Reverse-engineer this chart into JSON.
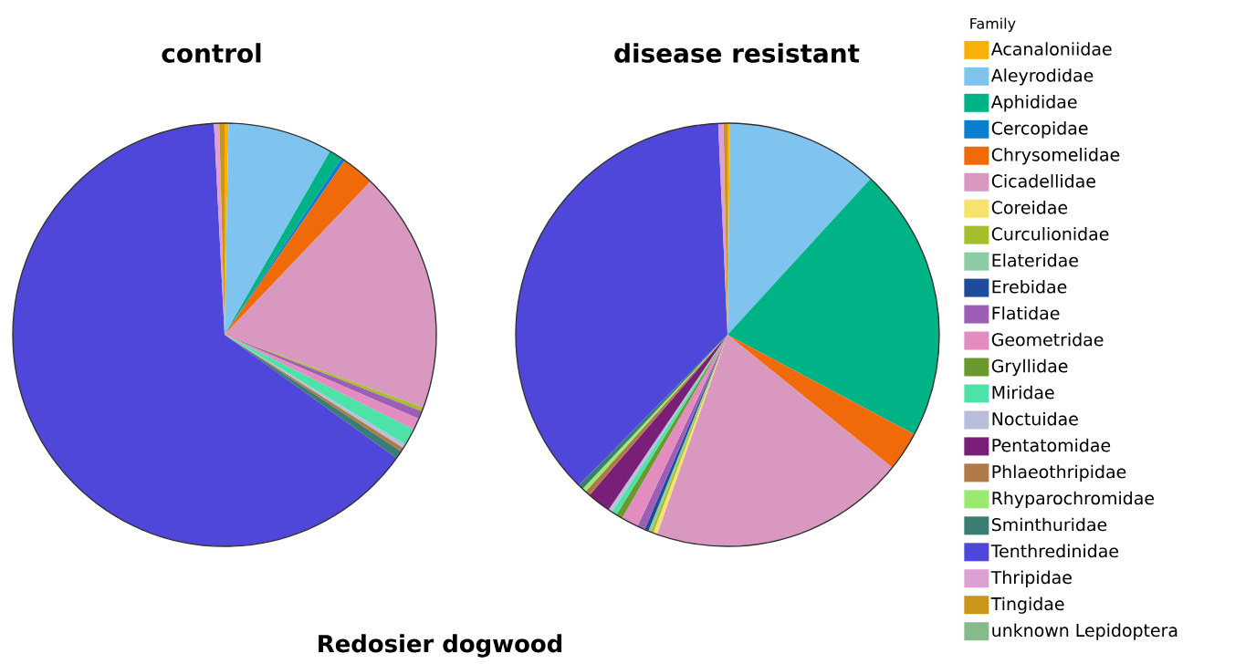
{
  "chart_data": [
    {
      "type": "pie",
      "title": "control",
      "legend": false,
      "annotations": [
        "Redosier dogwood"
      ],
      "categories": [
        null,
        null,
        null,
        null,
        null,
        null,
        null,
        null,
        null,
        null,
        null,
        null,
        null,
        null,
        null,
        null,
        null,
        null,
        null,
        null,
        null,
        null,
        null
      ],
      "values": [
        0.3,
        8.0,
        1.0,
        0.3,
        2.5,
        18.5,
        0,
        0.3,
        0,
        0,
        0.6,
        0.9,
        0,
        1.3,
        0.3,
        0,
        0.3,
        0,
        0.6,
        64.3,
        0.4,
        0.4,
        0
      ],
      "colors": [
        "#f9b10a",
        "#7fc4ee",
        "#00b386",
        "#0a7fd1",
        "#f06a0a",
        "#d898c0",
        "#f7e26b",
        "#a3bf2c",
        "#8ccba3",
        "#1e4c9c",
        "#9c5fb5",
        "#e28cc0",
        "#6a9a2e",
        "#4de3a8",
        "#b9bedc",
        "#7a1f78",
        "#b07a48",
        "#9bea70",
        "#3a7e73",
        "#4f47d9",
        "#dda0d2",
        "#c9961a",
        "#86ba8a"
      ]
    },
    {
      "type": "pie",
      "title": "disease resistant",
      "legend": "right",
      "legend_title": "Family",
      "categories": [
        "Acanaloniidae",
        "Aleyrodidae",
        "Aphididae",
        "Cercopidae",
        "Chrysomelidae",
        "Cicadellidae",
        "Coreidae",
        "Curculionidae",
        "Elateridae",
        "Erebidae",
        "Flatidae",
        "Geometridae",
        "Gryllidae",
        "Miridae",
        "Noctuidae",
        "Pentatomidae",
        "Phlaeothripidae",
        "Rhyparochromidae",
        "Sminthuridae",
        "Tenthredinidae",
        "Thripidae",
        "Tingidae",
        "unknown Lepidoptera"
      ],
      "values": [
        0.2,
        11.6,
        21.0,
        0,
        3.0,
        19.6,
        0.3,
        0.2,
        0.2,
        0.3,
        0.6,
        1.3,
        0.5,
        0.4,
        0.3,
        1.8,
        0.4,
        0.3,
        0.4,
        36.9,
        0.4,
        0.3,
        0
      ],
      "colors": [
        "#f9b10a",
        "#7fc4ee",
        "#00b386",
        "#0a7fd1",
        "#f06a0a",
        "#d898c0",
        "#f7e26b",
        "#a3bf2c",
        "#8ccba3",
        "#1e4c9c",
        "#9c5fb5",
        "#e28cc0",
        "#6a9a2e",
        "#4de3a8",
        "#b9bedc",
        "#7a1f78",
        "#b07a48",
        "#9bea70",
        "#3a7e73",
        "#4f47d9",
        "#dda0d2",
        "#c9961a",
        "#86ba8a"
      ]
    }
  ]
}
